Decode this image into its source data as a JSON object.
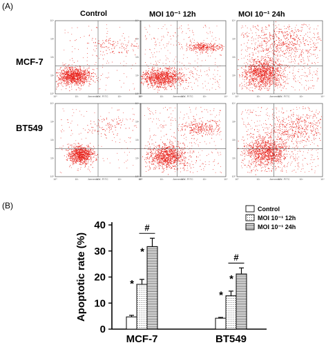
{
  "figure": {
    "panel_a_label": "(A)",
    "panel_b_label": "(B)"
  },
  "panel_a": {
    "columns": [
      "Control",
      "MOI 10⁻¹ 12h",
      "MOI 10⁻¹ 24h"
    ],
    "rows": [
      "MCF-7",
      "BT549"
    ],
    "x_axis_label": "Annexin V- FITC",
    "tick_labels": [
      "10⁰",
      "10¹",
      "10²",
      "10³",
      "10⁴"
    ],
    "dot_color": "#e8231c"
  },
  "chart_data": {
    "type": "bar",
    "categories": [
      "MCF-7",
      "BT549"
    ],
    "series": [
      {
        "name": "Control",
        "values": [
          4.7,
          4.2
        ],
        "errors": [
          0.6,
          0.3
        ],
        "fill": "white"
      },
      {
        "name": "MOI 10⁻¹ 12h",
        "values": [
          17.2,
          12.8
        ],
        "errors": [
          1.9,
          1.8
        ],
        "fill": "dots"
      },
      {
        "name": "MOI 10⁻¹ 24h",
        "values": [
          31.7,
          21.2
        ],
        "errors": [
          3.2,
          2.3
        ],
        "fill": "hlines"
      }
    ],
    "ylabel": "Apoptotic rate (%)",
    "ylim": [
      0,
      40
    ],
    "yticks": [
      "0",
      "10",
      "20",
      "30",
      "40"
    ],
    "significance_marks": {
      "star": "*",
      "hash": "#"
    },
    "legend_position": "top-right"
  }
}
